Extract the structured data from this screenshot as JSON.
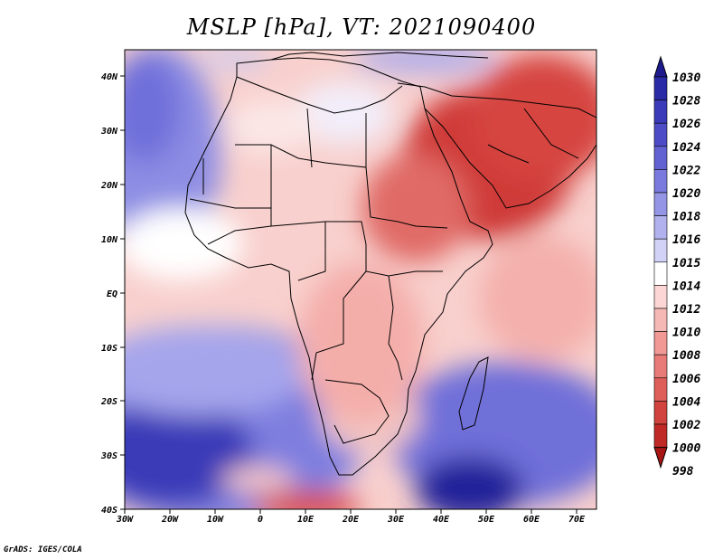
{
  "title": "MSLP [hPa], VT: 2021090400",
  "credit": "GrADS: IGES/COLA",
  "lon_ticks": [
    "30W",
    "20W",
    "10W",
    "0",
    "10E",
    "20E",
    "30E",
    "40E",
    "50E",
    "60E",
    "70E"
  ],
  "lat_ticks": [
    "40N",
    "30N",
    "20N",
    "10N",
    "EQ",
    "10S",
    "20S",
    "30S",
    "40S"
  ],
  "colorbar": {
    "labels": [
      "1030",
      "1028",
      "1026",
      "1024",
      "1022",
      "1020",
      "1018",
      "1016",
      "1015",
      "1014",
      "1012",
      "1010",
      "1008",
      "1006",
      "1004",
      "1002",
      "1000",
      "998"
    ],
    "colors": [
      "#1e1b8f",
      "#2b2aa6",
      "#3b3ab8",
      "#4d4cc6",
      "#6362d2",
      "#7a7ade",
      "#9595e6",
      "#b1b1ee",
      "#d2d2f6",
      "#ffffff",
      "#fbd6d4",
      "#f6b8b5",
      "#f09995",
      "#e87b77",
      "#de5e59",
      "#d1433e",
      "#bf2a27",
      "#a81515"
    ]
  },
  "chart_data": {
    "type": "heatmap",
    "title": "MSLP [hPa], VT: 2021090400",
    "x_range": [
      "30W",
      "75E"
    ],
    "y_range": [
      "40S",
      "45N"
    ],
    "levels": [
      998,
      1000,
      1002,
      1004,
      1006,
      1008,
      1010,
      1012,
      1014,
      1015,
      1016,
      1018,
      1020,
      1022,
      1024,
      1026,
      1028,
      1030
    ]
  }
}
